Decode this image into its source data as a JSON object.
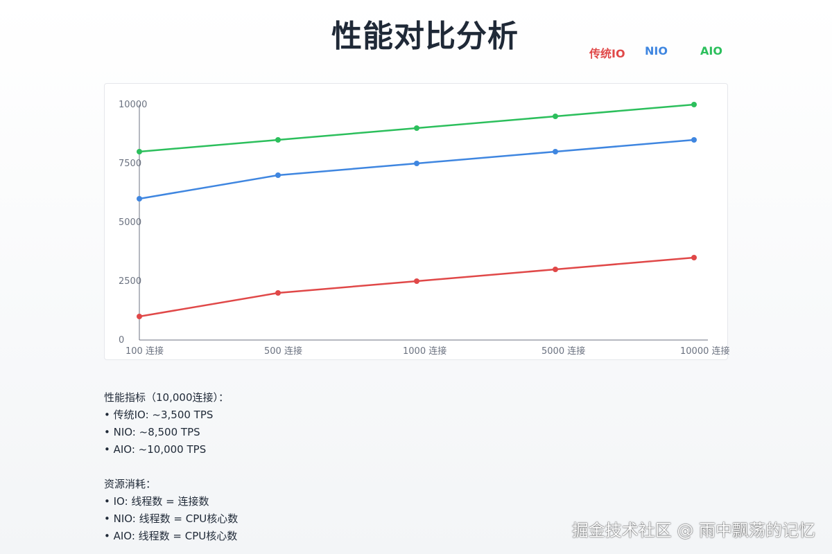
{
  "title": "性能对比分析",
  "legend": [
    {
      "label": "传统IO",
      "color": "#e04848"
    },
    {
      "label": "NIO",
      "color": "#3f86e0"
    },
    {
      "label": "AIO",
      "color": "#2cbf5c"
    }
  ],
  "chart_data": {
    "type": "line",
    "title": "性能对比分析",
    "categories": [
      "100 连接",
      "500 连接",
      "1000 连接",
      "5000 连接",
      "10000 连接"
    ],
    "y_ticks": [
      "0",
      "2500",
      "5000",
      "7500",
      "10000"
    ],
    "ylim": [
      0,
      10000
    ],
    "grid": false,
    "legend_position": "top-right",
    "series": [
      {
        "name": "传统IO",
        "color": "#e04848",
        "values": [
          1000,
          2000,
          2500,
          3000,
          3500
        ]
      },
      {
        "name": "NIO",
        "color": "#3f86e0",
        "values": [
          6000,
          7000,
          7500,
          8000,
          8500
        ]
      },
      {
        "name": "AIO",
        "color": "#2cbf5c",
        "values": [
          8000,
          8500,
          9000,
          9500,
          10000
        ]
      }
    ]
  },
  "notes": {
    "metrics_heading": "性能指标（10,000连接）：",
    "metrics": [
      "• 传统IO: ~3,500 TPS",
      "• NIO: ~8,500 TPS",
      "• AIO: ~10,000 TPS"
    ],
    "resource_heading": "资源消耗：",
    "resources": [
      "• IO: 线程数 = 连接数",
      "• NIO: 线程数 = CPU核心数",
      "• AIO: 线程数 = CPU核心数"
    ]
  },
  "watermark": "掘金技术社区 @ 雨中飘荡的记忆"
}
